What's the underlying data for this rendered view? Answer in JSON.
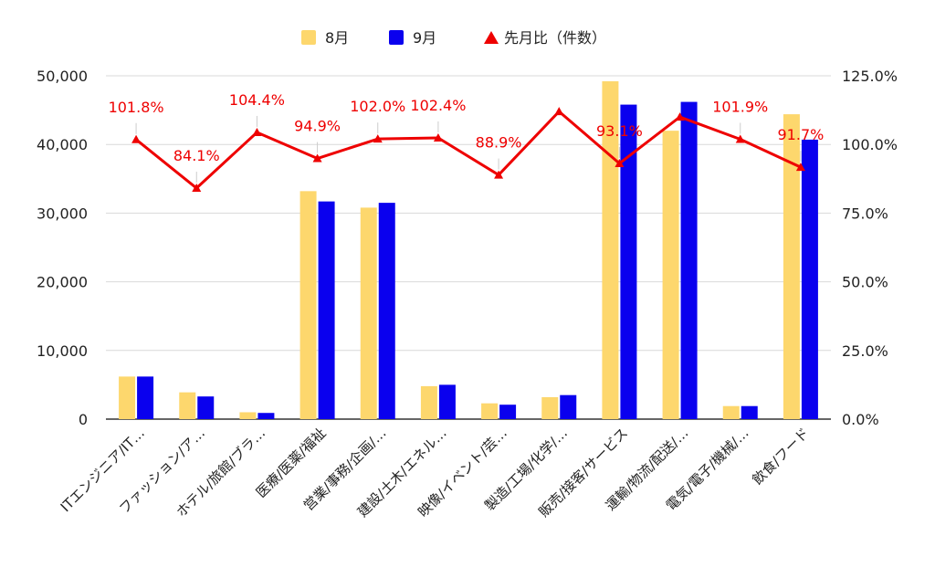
{
  "chart_data": {
    "type": "bar",
    "categories": [
      "ITエンジニア/IT…",
      "ファッション/ア…",
      "ホテル/旅館/ブラ…",
      "医療/医薬/福祉",
      "営業/事務/企画/…",
      "建設/土木/エネル…",
      "映像/イベント/芸…",
      "製造/工場/化学/…",
      "販売/接客/サービス",
      "運輸/物流/配送/…",
      "電気/電子/機械/…",
      "飲食/フード"
    ],
    "series": [
      {
        "name": "8月",
        "color": "#fdd76d",
        "values": [
          6200,
          3900,
          1000,
          33200,
          30800,
          4800,
          2300,
          3200,
          49200,
          42000,
          1900,
          44400
        ]
      },
      {
        "name": "9月",
        "color": "#0a00ee",
        "values": [
          6200,
          3300,
          900,
          31700,
          31500,
          5000,
          2100,
          3500,
          45800,
          46200,
          1900,
          40700
        ]
      }
    ],
    "line_series": {
      "name": "先月比（件数）",
      "color": "#ee0000",
      "values": [
        101.8,
        84.1,
        104.4,
        94.9,
        102.0,
        102.4,
        88.9,
        112.0,
        93.1,
        110.0,
        101.9,
        91.7
      ],
      "labels": [
        "101.8%",
        "84.1%",
        "104.4%",
        "94.9%",
        "102.0%",
        "102.4%",
        "88.9%",
        "",
        "93.1%",
        "",
        "101.9%",
        "91.7%"
      ]
    },
    "y_left": {
      "ticks": [
        "0",
        "10,000",
        "20,000",
        "30,000",
        "40,000",
        "50,000"
      ],
      "range": [
        0,
        50000
      ]
    },
    "y_right": {
      "ticks": [
        "0.0%",
        "25.0%",
        "50.0%",
        "75.0%",
        "100.0%",
        "125.0%"
      ],
      "range": [
        0,
        125
      ]
    },
    "legend_position": "top",
    "grid": true
  }
}
